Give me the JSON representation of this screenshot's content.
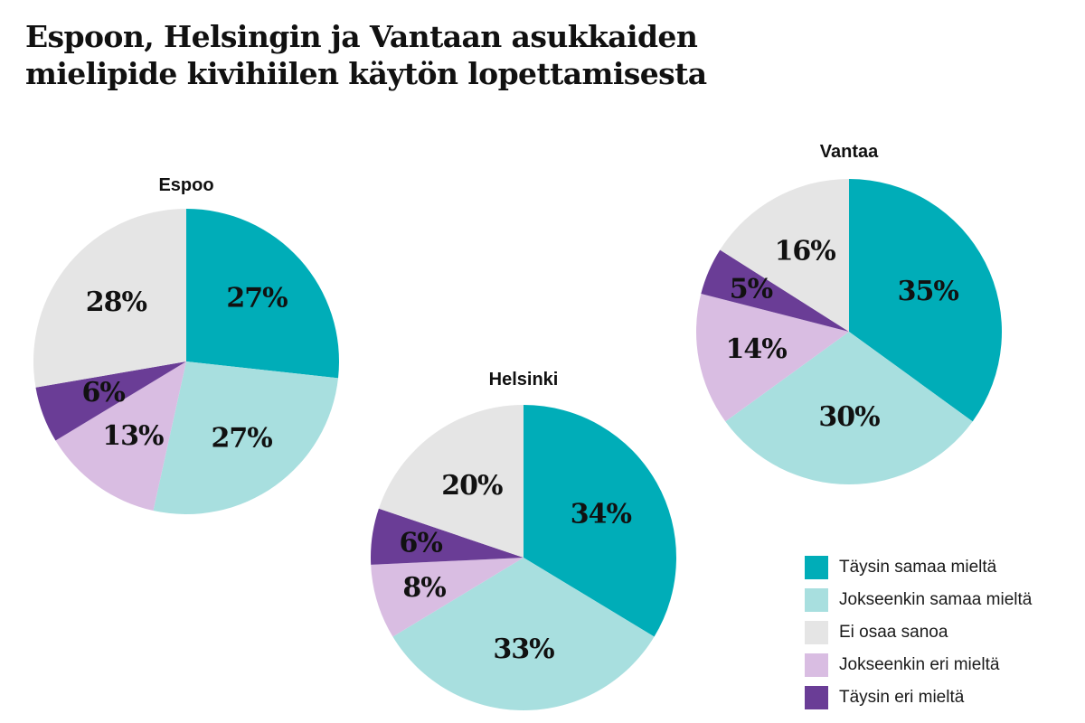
{
  "title_lines": [
    "Espoon, Helsingin ja Vantaan asukkaiden",
    "mielipide kivihiilen käytön lopettamisesta"
  ],
  "legend": [
    {
      "label": "Täysin samaa mieltä",
      "color": "#00adb8"
    },
    {
      "label": "Jokseenkin samaa mieltä",
      "color": "#a8dfdf"
    },
    {
      "label": "Ei osaa sanoa",
      "color": "#e5e5e5"
    },
    {
      "label": "Jokseenkin eri mieltä",
      "color": "#d9bde2"
    },
    {
      "label": "Täysin eri mieltä",
      "color": "#6a3d96"
    }
  ],
  "chart_data": [
    {
      "type": "pie",
      "title": "Espoo",
      "categories": [
        "Täysin samaa mieltä",
        "Jokseenkin samaa mieltä",
        "Jokseenkin eri mieltä",
        "Täysin eri mieltä",
        "Ei osaa sanoa"
      ],
      "values": [
        27,
        27,
        13,
        6,
        28
      ],
      "labels": [
        "27%",
        "27%",
        "13%",
        "6%",
        "28%"
      ],
      "colors": [
        "#00adb8",
        "#a8dfdf",
        "#d9bde2",
        "#6a3d96",
        "#e5e5e5"
      ]
    },
    {
      "type": "pie",
      "title": "Helsinki",
      "categories": [
        "Täysin samaa mieltä",
        "Jokseenkin samaa mieltä",
        "Jokseenkin eri mieltä",
        "Täysin eri mieltä",
        "Ei osaa sanoa"
      ],
      "values": [
        34,
        33,
        8,
        6,
        20
      ],
      "labels": [
        "34%",
        "33%",
        "8%",
        "6%",
        "20%"
      ],
      "colors": [
        "#00adb8",
        "#a8dfdf",
        "#d9bde2",
        "#6a3d96",
        "#e5e5e5"
      ]
    },
    {
      "type": "pie",
      "title": "Vantaa",
      "categories": [
        "Täysin samaa mieltä",
        "Jokseenkin samaa mieltä",
        "Jokseenkin eri mieltä",
        "Täysin eri mieltä",
        "Ei osaa sanoa"
      ],
      "values": [
        35,
        30,
        14,
        5,
        16
      ],
      "labels": [
        "35%",
        "30%",
        "14%",
        "5%",
        "16%"
      ],
      "colors": [
        "#00adb8",
        "#a8dfdf",
        "#d9bde2",
        "#6a3d96",
        "#e5e5e5"
      ]
    }
  ]
}
